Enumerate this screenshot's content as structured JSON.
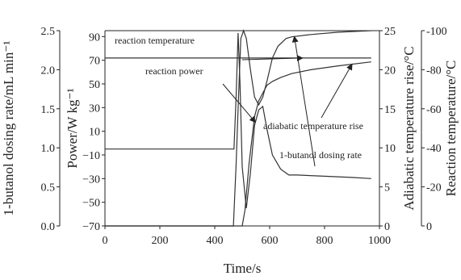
{
  "chart_data": {
    "type": "line",
    "x": {
      "label": "Time/s",
      "ticks": [
        0,
        200,
        400,
        600,
        800,
        1000
      ],
      "range": [
        0,
        1000
      ]
    },
    "axes": {
      "dosing": {
        "label": "1-butanol dosing rate/mL min⁻¹",
        "range": [
          0,
          2.5
        ],
        "ticks": [
          0.0,
          0.5,
          1.0,
          1.5,
          2.0,
          2.5
        ],
        "tick_labels": [
          "0.0",
          "0.5",
          "1.0",
          "1.5",
          "2.0",
          "2.5"
        ]
      },
      "power": {
        "label": "Power/W kg⁻¹",
        "range": [
          -70,
          95
        ],
        "ticks": [
          -70,
          -50,
          -30,
          -10,
          10,
          30,
          50,
          70,
          90
        ],
        "tick_labels": [
          "−70",
          "−50",
          "−30",
          "−10",
          "10",
          "30",
          "50",
          "70",
          "90"
        ]
      },
      "adiabatic": {
        "label": "Adiabatic temperature rise/°C",
        "range": [
          0,
          25
        ],
        "ticks": [
          0,
          5,
          10,
          15,
          20,
          25
        ],
        "tick_labels": [
          "0",
          "5",
          "10",
          "15",
          "20",
          "25"
        ]
      },
      "reaction": {
        "label": "Reaction temperature/°C",
        "range": [
          0,
          100
        ],
        "ticks": [
          0,
          20,
          40,
          60,
          80,
          100
        ],
        "tick_labels": [
          "0",
          "-20",
          "-40",
          "-60",
          "-80",
          "-100"
        ]
      }
    },
    "series": [
      {
        "name": "reaction temperature",
        "axis": "reaction",
        "x": [
          0,
          200,
          400,
          480,
          500,
          600,
          800,
          970
        ],
        "y": [
          86,
          86,
          86,
          86,
          86,
          86,
          86,
          86
        ]
      },
      {
        "name": "reaction power",
        "axis": "power",
        "x": [
          0,
          470,
          478,
          485,
          492,
          500,
          515,
          530,
          545,
          560,
          575,
          590,
          610,
          640,
          670,
          700,
          800,
          900,
          970
        ],
        "y": [
          -5,
          -5,
          40,
          93,
          50,
          -20,
          -55,
          -25,
          15,
          28,
          31,
          12,
          -10,
          -22,
          -27,
          -27,
          -28,
          -29,
          -30
        ]
      },
      {
        "name": "adiabatic temperature rise",
        "axis": "adiabatic",
        "x": [
          0,
          470,
          490,
          500,
          510,
          525,
          545,
          560,
          575,
          590,
          610,
          640,
          680,
          750,
          850,
          970
        ],
        "y": [
          0,
          0,
          0,
          0,
          2,
          8,
          14,
          16,
          17,
          18,
          18.5,
          19,
          19.5,
          20,
          20.5,
          21
        ]
      },
      {
        "name": "1-butanol dosing rate",
        "axis": "dosing",
        "x": [
          0,
          468,
          478,
          487,
          495,
          505,
          515,
          530,
          545,
          560,
          575,
          590,
          610,
          630,
          660,
          680,
          750,
          850,
          970
        ],
        "y": [
          0,
          0,
          0.8,
          1.7,
          2.4,
          2.5,
          2.4,
          2.0,
          1.65,
          1.55,
          1.65,
          1.85,
          2.15,
          2.3,
          2.4,
          2.42,
          2.45,
          2.48,
          2.5
        ]
      }
    ],
    "annotations": [
      {
        "text": "reaction temperature",
        "series": "reaction temperature"
      },
      {
        "text": "reaction power",
        "series": "reaction power"
      },
      {
        "text": "adiabatic temperature rise",
        "series": "adiabatic temperature rise"
      },
      {
        "text": "1-butanol dosing rate",
        "series": "1-butanol dosing rate"
      }
    ]
  }
}
